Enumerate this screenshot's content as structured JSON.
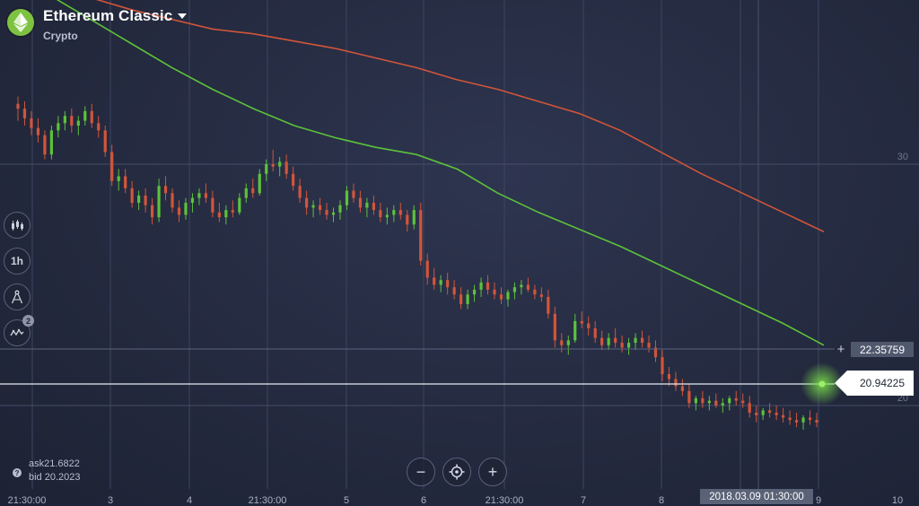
{
  "asset": {
    "title": "Ethereum Classic",
    "category": "Crypto"
  },
  "toolbar": {
    "timeframe": "1h",
    "indicator_count": "2"
  },
  "quote": {
    "ask": "ask21.6822",
    "bid": "bid 20.2023"
  },
  "zoom": {
    "minus": "−",
    "plus": "+"
  },
  "crosshair_time": "2018.03.09 01:30:00",
  "price_marker": {
    "level": "22.35759",
    "current": "20.94225"
  },
  "chart_data": {
    "type": "candlestick",
    "y_ticks": [
      {
        "label": "30",
        "value": 30
      },
      {
        "label": "20",
        "value": 20
      }
    ],
    "x_ticks": [
      "21:30:00",
      "3",
      "4",
      "21:30:00",
      "5",
      "6",
      "21:30:00",
      "7",
      "8",
      "9",
      "10"
    ],
    "current_price": 20.94225,
    "marker_price": 22.35759,
    "moving_averages": [
      {
        "color": "#d2553a",
        "values": [
          37.6,
          37.2,
          36.9,
          36.4,
          36.0,
          35.6,
          35.4,
          35.1,
          34.8,
          34.4,
          34.0,
          33.5,
          33.1,
          32.6,
          32.1,
          31.4,
          30.5,
          29.6,
          28.8,
          28.0,
          27.2
        ]
      },
      {
        "color": "#5cc23a",
        "values": [
          37.6,
          37.0,
          36.0,
          35.0,
          34.0,
          33.1,
          32.3,
          31.6,
          31.1,
          30.7,
          30.4,
          29.8,
          28.8,
          28.0,
          27.3,
          26.6,
          25.8,
          25.0,
          24.2,
          23.4,
          22.5
        ]
      }
    ],
    "colors": {
      "up": "#5cc23a",
      "down": "#d2553a"
    },
    "candles": [
      [
        32.5,
        32.8,
        31.8,
        32.3
      ],
      [
        32.3,
        32.6,
        31.6,
        31.9
      ],
      [
        31.9,
        32.2,
        31.2,
        31.5
      ],
      [
        31.5,
        31.9,
        30.9,
        31.2
      ],
      [
        31.2,
        31.4,
        30.2,
        30.4
      ],
      [
        30.4,
        31.6,
        30.2,
        31.4
      ],
      [
        31.4,
        32.0,
        31.1,
        31.7
      ],
      [
        31.7,
        32.2,
        31.4,
        32.0
      ],
      [
        32.0,
        32.3,
        31.3,
        31.6
      ],
      [
        31.6,
        32.0,
        31.2,
        31.8
      ],
      [
        31.8,
        32.4,
        31.6,
        32.2
      ],
      [
        32.2,
        32.5,
        31.5,
        31.7
      ],
      [
        31.7,
        32.0,
        31.1,
        31.4
      ],
      [
        31.4,
        31.6,
        30.3,
        30.5
      ],
      [
        30.5,
        30.8,
        29.1,
        29.3
      ],
      [
        29.3,
        29.8,
        28.9,
        29.5
      ],
      [
        29.5,
        29.8,
        28.8,
        29.0
      ],
      [
        29.0,
        29.3,
        28.2,
        28.4
      ],
      [
        28.4,
        28.9,
        28.1,
        28.7
      ],
      [
        28.7,
        29.0,
        28.0,
        28.3
      ],
      [
        28.3,
        28.6,
        27.5,
        27.8
      ],
      [
        27.8,
        29.4,
        27.6,
        29.1
      ],
      [
        29.1,
        29.5,
        28.5,
        28.8
      ],
      [
        28.8,
        29.0,
        28.0,
        28.2
      ],
      [
        28.2,
        28.5,
        27.6,
        27.9
      ],
      [
        27.9,
        28.6,
        27.7,
        28.4
      ],
      [
        28.4,
        28.8,
        28.0,
        28.6
      ],
      [
        28.6,
        29.0,
        28.3,
        28.8
      ],
      [
        28.8,
        29.2,
        28.4,
        28.6
      ],
      [
        28.6,
        28.9,
        27.8,
        28.0
      ],
      [
        28.0,
        28.4,
        27.6,
        27.8
      ],
      [
        27.8,
        28.3,
        27.5,
        28.1
      ],
      [
        28.1,
        28.5,
        27.8,
        28.0
      ],
      [
        28.0,
        28.8,
        27.9,
        28.6
      ],
      [
        28.6,
        29.2,
        28.4,
        29.0
      ],
      [
        29.0,
        29.4,
        28.6,
        28.8
      ],
      [
        28.8,
        29.8,
        28.7,
        29.6
      ],
      [
        29.6,
        30.2,
        29.3,
        30.0
      ],
      [
        30.0,
        30.6,
        29.7,
        29.9
      ],
      [
        29.9,
        30.3,
        29.5,
        30.1
      ],
      [
        30.1,
        30.4,
        29.4,
        29.6
      ],
      [
        29.6,
        29.9,
        28.9,
        29.1
      ],
      [
        29.1,
        29.4,
        28.4,
        28.6
      ],
      [
        28.6,
        28.9,
        27.9,
        28.2
      ],
      [
        28.2,
        28.5,
        27.8,
        28.3
      ],
      [
        28.3,
        28.6,
        27.9,
        28.1
      ],
      [
        28.1,
        28.4,
        27.7,
        27.9
      ],
      [
        27.9,
        28.2,
        27.6,
        28.0
      ],
      [
        28.0,
        28.5,
        27.7,
        28.3
      ],
      [
        28.3,
        29.1,
        28.1,
        28.9
      ],
      [
        28.9,
        29.2,
        28.4,
        28.6
      ],
      [
        28.6,
        28.9,
        28.0,
        28.2
      ],
      [
        28.2,
        28.6,
        27.8,
        28.4
      ],
      [
        28.4,
        28.7,
        27.9,
        28.1
      ],
      [
        28.1,
        28.4,
        27.6,
        27.8
      ],
      [
        27.8,
        28.2,
        27.5,
        27.9
      ],
      [
        27.9,
        28.3,
        27.6,
        28.1
      ],
      [
        28.1,
        28.4,
        27.7,
        27.9
      ],
      [
        27.9,
        28.1,
        27.2,
        27.5
      ],
      [
        27.5,
        28.3,
        27.3,
        28.1
      ],
      [
        28.1,
        28.4,
        25.8,
        26.0
      ],
      [
        26.0,
        26.3,
        25.0,
        25.3
      ],
      [
        25.3,
        25.7,
        24.8,
        25.0
      ],
      [
        25.0,
        25.4,
        24.7,
        25.2
      ],
      [
        25.2,
        25.5,
        24.6,
        24.9
      ],
      [
        24.9,
        25.2,
        24.4,
        24.6
      ],
      [
        24.6,
        24.9,
        24.0,
        24.2
      ],
      [
        24.2,
        24.8,
        24.0,
        24.6
      ],
      [
        24.6,
        25.0,
        24.3,
        24.8
      ],
      [
        24.8,
        25.3,
        24.5,
        25.1
      ],
      [
        25.1,
        25.4,
        24.6,
        24.8
      ],
      [
        24.8,
        25.1,
        24.4,
        24.6
      ],
      [
        24.6,
        24.9,
        24.2,
        24.4
      ],
      [
        24.4,
        24.8,
        24.1,
        24.7
      ],
      [
        24.7,
        25.1,
        24.4,
        24.9
      ],
      [
        24.9,
        25.2,
        24.6,
        25.0
      ],
      [
        25.0,
        25.3,
        24.7,
        24.8
      ],
      [
        24.8,
        25.0,
        24.4,
        24.6
      ],
      [
        24.6,
        24.9,
        24.3,
        24.5
      ],
      [
        24.5,
        24.8,
        23.6,
        23.8
      ],
      [
        23.8,
        24.1,
        22.4,
        22.7
      ],
      [
        22.7,
        23.0,
        22.2,
        22.5
      ],
      [
        22.5,
        22.9,
        22.1,
        22.7
      ],
      [
        22.7,
        23.8,
        22.6,
        23.5
      ],
      [
        23.5,
        23.9,
        23.2,
        23.4
      ],
      [
        23.4,
        23.7,
        22.9,
        23.2
      ],
      [
        23.2,
        23.5,
        22.6,
        22.8
      ],
      [
        22.8,
        23.1,
        22.3,
        22.5
      ],
      [
        22.5,
        23.0,
        22.3,
        22.8
      ],
      [
        22.8,
        23.2,
        22.4,
        22.6
      ],
      [
        22.6,
        22.9,
        22.2,
        22.4
      ],
      [
        22.4,
        22.8,
        22.1,
        22.6
      ],
      [
        22.6,
        23.0,
        22.3,
        22.8
      ],
      [
        22.8,
        23.1,
        22.4,
        22.6
      ],
      [
        22.6,
        22.9,
        22.2,
        22.4
      ],
      [
        22.4,
        22.7,
        21.8,
        22.0
      ],
      [
        22.0,
        22.3,
        21.0,
        21.3
      ],
      [
        21.3,
        21.6,
        20.8,
        21.1
      ],
      [
        21.1,
        21.4,
        20.6,
        20.8
      ],
      [
        20.8,
        21.1,
        20.4,
        20.6
      ],
      [
        20.6,
        20.9,
        19.9,
        20.1
      ],
      [
        20.1,
        20.4,
        19.8,
        20.3
      ],
      [
        20.3,
        20.6,
        19.9,
        20.1
      ],
      [
        20.1,
        20.4,
        19.8,
        20.2
      ],
      [
        20.2,
        20.5,
        19.9,
        20.0
      ],
      [
        20.0,
        20.3,
        19.7,
        20.1
      ],
      [
        20.1,
        20.4,
        19.8,
        20.3
      ],
      [
        20.3,
        20.6,
        20.0,
        20.2
      ],
      [
        20.2,
        20.5,
        19.9,
        20.1
      ],
      [
        20.1,
        20.4,
        19.5,
        19.7
      ],
      [
        19.7,
        20.0,
        19.3,
        19.6
      ],
      [
        19.6,
        19.9,
        19.4,
        19.8
      ],
      [
        19.8,
        20.1,
        19.5,
        19.7
      ],
      [
        19.7,
        20.0,
        19.4,
        19.6
      ],
      [
        19.6,
        19.9,
        19.3,
        19.5
      ],
      [
        19.5,
        19.8,
        19.2,
        19.4
      ],
      [
        19.4,
        19.7,
        19.1,
        19.3
      ],
      [
        19.3,
        19.6,
        19.0,
        19.5
      ],
      [
        19.5,
        19.8,
        19.2,
        19.4
      ],
      [
        19.4,
        19.7,
        19.1,
        19.3
      ]
    ]
  }
}
